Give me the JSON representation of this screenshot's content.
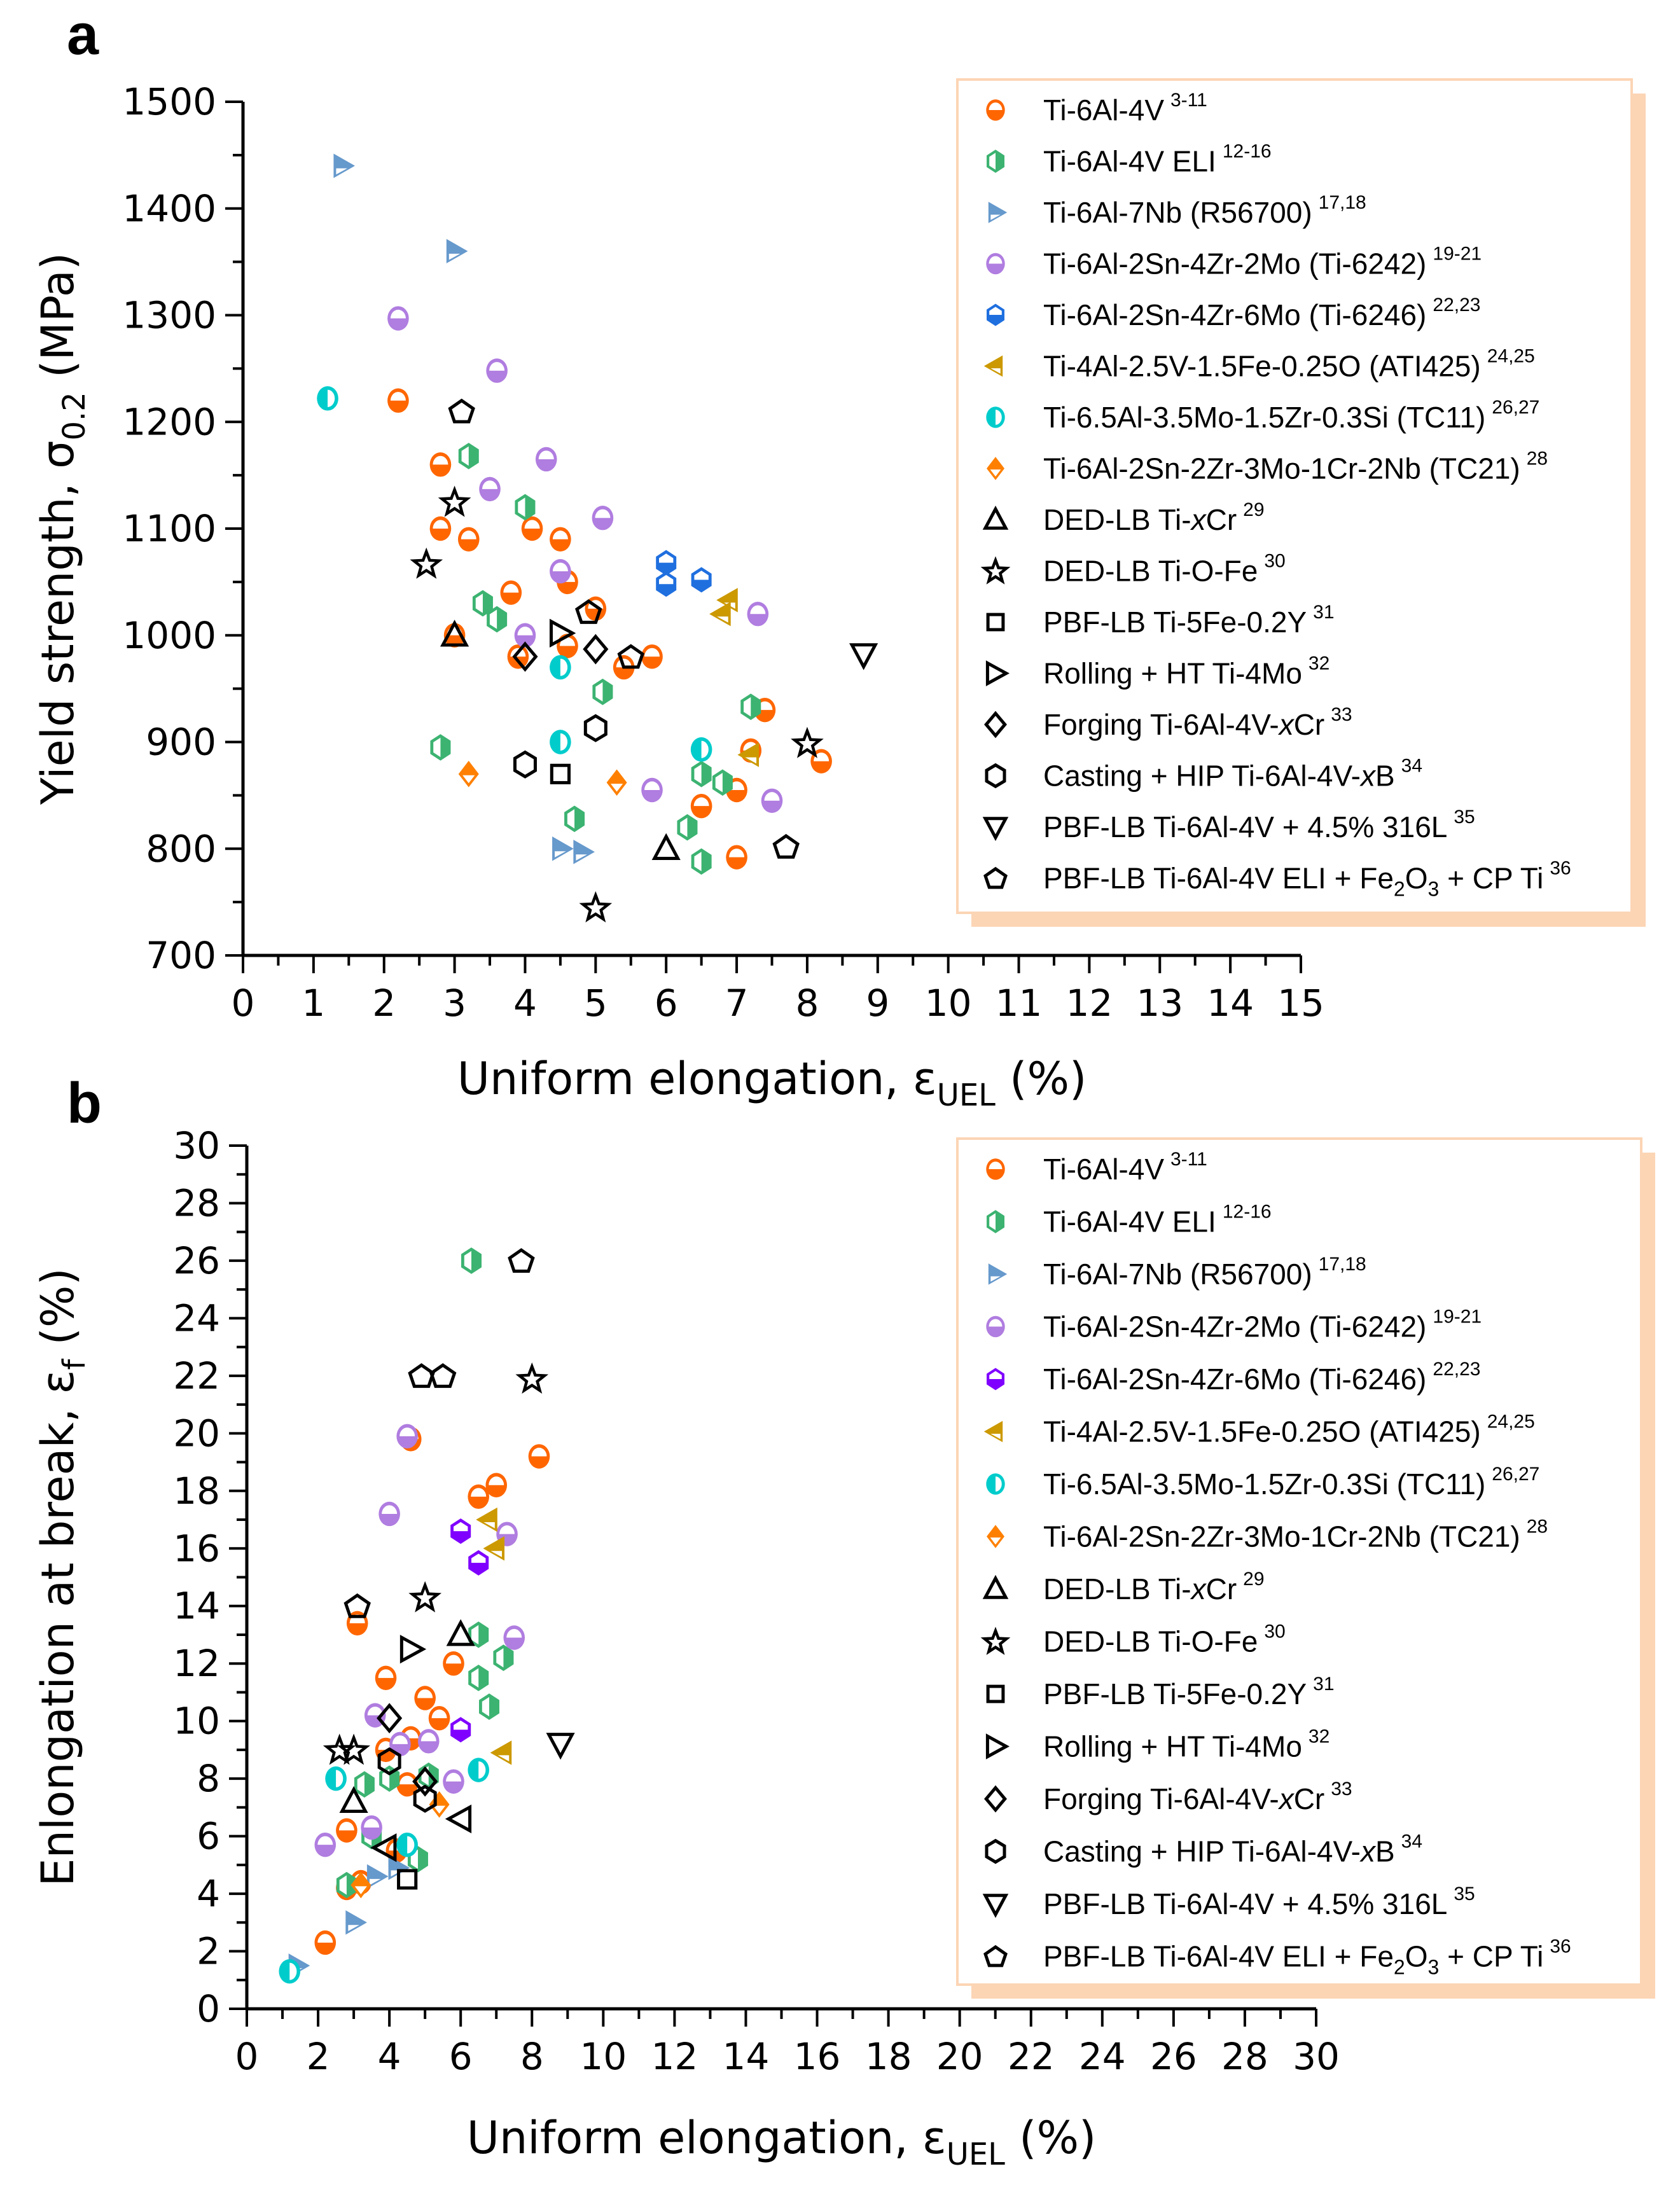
{
  "chart_data": [
    {
      "panel": "a",
      "type": "scatter",
      "title": "",
      "xlabel": "Uniform elongation, εUEL (%)",
      "xlabel_parts": {
        "main": "Uniform elongation, ",
        "symbol": "ε",
        "sub": "UEL",
        "unit": " (%)"
      },
      "ylabel": "Yield strength, σ0.2 (MPa)",
      "ylabel_parts": {
        "main": "Yield strength, ",
        "symbol": "σ",
        "sub": "0.2",
        "unit": " (MPa)"
      },
      "xlim": [
        0,
        15
      ],
      "ylim": [
        700,
        1500
      ],
      "xticks": [
        0,
        1,
        2,
        3,
        4,
        5,
        6,
        7,
        8,
        9,
        10,
        11,
        12,
        13,
        14,
        15
      ],
      "yticks": [
        700,
        800,
        900,
        1000,
        1100,
        1200,
        1300,
        1400,
        1500
      ],
      "grid": false,
      "legend_position": "right",
      "series": [
        {
          "name": "Ti-6Al-4V",
          "ref": "3-11",
          "marker": "circle-half",
          "color": "#ff6600",
          "points": [
            [
              2.2,
              1220
            ],
            [
              2.8,
              1160
            ],
            [
              2.8,
              1100
            ],
            [
              3.2,
              1090
            ],
            [
              3.0,
              1000
            ],
            [
              3.8,
              1040
            ],
            [
              4.1,
              1100
            ],
            [
              4.5,
              1090
            ],
            [
              4.6,
              1050
            ],
            [
              3.9,
              980
            ],
            [
              4.6,
              990
            ],
            [
              5.0,
              1025
            ],
            [
              5.4,
              970
            ],
            [
              5.8,
              980
            ],
            [
              6.5,
              840
            ],
            [
              7.0,
              855
            ],
            [
              7.0,
              792
            ],
            [
              7.2,
              892
            ],
            [
              7.4,
              930
            ],
            [
              8.2,
              882
            ]
          ]
        },
        {
          "name": "Ti-6Al-4V ELI",
          "ref": "12-16",
          "marker": "hexagon-half",
          "color": "#3cb371",
          "points": [
            [
              3.2,
              1168
            ],
            [
              3.4,
              1030
            ],
            [
              3.6,
              1015
            ],
            [
              4.0,
              1120
            ],
            [
              2.8,
              895
            ],
            [
              4.7,
              828
            ],
            [
              5.1,
              947
            ],
            [
              6.3,
              820
            ],
            [
              6.5,
              870
            ],
            [
              6.5,
              788
            ],
            [
              6.8,
              862
            ],
            [
              7.2,
              933
            ]
          ]
        },
        {
          "name": "Ti-6Al-7Nb (R56700)",
          "ref": "17,18",
          "marker": "triangle-right-half",
          "color": "#6699cc",
          "points": [
            [
              1.4,
              1440
            ],
            [
              3.0,
              1360
            ],
            [
              4.5,
              800
            ],
            [
              4.8,
              797
            ]
          ]
        },
        {
          "name": "Ti-6Al-2Sn-4Zr-2Mo (Ti-6242)",
          "ref": "19-21",
          "marker": "circle-half",
          "color": "#b07de0",
          "points": [
            [
              2.2,
              1297
            ],
            [
              3.6,
              1248
            ],
            [
              4.3,
              1165
            ],
            [
              3.5,
              1137
            ],
            [
              4.5,
              1060
            ],
            [
              4.0,
              1000
            ],
            [
              5.1,
              1110
            ],
            [
              7.3,
              1020
            ],
            [
              5.8,
              855
            ],
            [
              7.5,
              845
            ]
          ]
        },
        {
          "name": "Ti-6Al-2Sn-4Zr-6Mo (Ti-6246)",
          "ref": "22,23",
          "marker": "hexagon-top-half",
          "color": "#1f6fdf",
          "points": [
            [
              6.0,
              1068
            ],
            [
              6.0,
              1048
            ],
            [
              6.5,
              1052
            ]
          ]
        },
        {
          "name": "Ti-4Al-2.5V-1.5Fe-0.25O (ATI425)",
          "ref": "24,25",
          "marker": "triangle-left-half",
          "color": "#cc9900",
          "points": [
            [
              6.9,
              1033
            ],
            [
              6.8,
              1020
            ],
            [
              7.2,
              888
            ]
          ]
        },
        {
          "name": "Ti-6.5Al-3.5Mo-1.5Zr-0.3Si (TC11)",
          "ref": "26,27",
          "marker": "circle-vhalf",
          "color": "#00cccc",
          "points": [
            [
              1.2,
              1222
            ],
            [
              4.5,
              970
            ],
            [
              4.5,
              900
            ],
            [
              6.5,
              893
            ]
          ]
        },
        {
          "name": "Ti-6Al-2Sn-2Zr-3Mo-1Cr-2Nb (TC21)",
          "ref": "28",
          "marker": "diamond-half",
          "color": "#ff8000",
          "points": [
            [
              3.2,
              870
            ],
            [
              5.3,
              862
            ]
          ]
        },
        {
          "name": "DED-LB Ti-xCr",
          "ref": "29",
          "italic": "x",
          "marker": "triangle-up",
          "color": "#000000",
          "points": [
            [
              3.0,
              1000
            ],
            [
              6.0,
              800
            ]
          ]
        },
        {
          "name": "DED-LB Ti-O-Fe",
          "ref": "30",
          "marker": "star",
          "color": "#000000",
          "points": [
            [
              3.0,
              1125
            ],
            [
              2.6,
              1067
            ],
            [
              8.0,
              899
            ],
            [
              5.0,
              745
            ]
          ]
        },
        {
          "name": "PBF-LB Ti-5Fe-0.2Y",
          "ref": "31",
          "marker": "square",
          "color": "#000000",
          "points": [
            [
              4.5,
              870
            ]
          ]
        },
        {
          "name": "Rolling + HT Ti-4Mo",
          "ref": "32",
          "marker": "triangle-right",
          "color": "#000000",
          "points": [
            [
              4.5,
              1002
            ]
          ]
        },
        {
          "name": "Forging Ti-6Al-4V-xCr",
          "ref": "33",
          "marker": "diamond",
          "color": "#000000",
          "points": [
            [
              4.0,
              980
            ],
            [
              5.0,
              987
            ]
          ]
        },
        {
          "name": "Casting + HIP Ti-6Al-4V-xB",
          "ref": "34",
          "marker": "hexagon",
          "color": "#000000",
          "points": [
            [
              5.0,
              913
            ],
            [
              4.0,
              879
            ]
          ]
        },
        {
          "name": "PBF-LB Ti-6Al-4V + 4.5% 316L",
          "ref": "35",
          "marker": "triangle-down",
          "color": "#000000",
          "points": [
            [
              8.8,
              982
            ]
          ]
        },
        {
          "name": "PBF-LB Ti-6Al-4V ELI + Fe2O3 + CP Ti",
          "ref": "36",
          "marker": "pentagon",
          "color": "#000000",
          "points": [
            [
              3.1,
              1210
            ],
            [
              4.9,
              1022
            ],
            [
              5.5,
              980
            ],
            [
              7.7,
              802
            ]
          ]
        }
      ]
    },
    {
      "panel": "b",
      "type": "scatter",
      "title": "",
      "xlabel": "Uniform elongation, εUEL (%)",
      "xlabel_parts": {
        "main": "Uniform elongation, ",
        "symbol": "ε",
        "sub": "UEL",
        "unit": " (%)"
      },
      "ylabel": "Enlongation at break, εf (%)",
      "ylabel_parts": {
        "main": "Enlongation at break, ",
        "symbol": "ε",
        "sub": "f",
        "unit": " (%)"
      },
      "xlim": [
        0,
        30
      ],
      "ylim": [
        0,
        30
      ],
      "xticks": [
        0,
        2,
        4,
        6,
        8,
        10,
        12,
        14,
        16,
        18,
        20,
        22,
        24,
        26,
        28,
        30
      ],
      "yticks": [
        0,
        2,
        4,
        6,
        8,
        10,
        12,
        14,
        16,
        18,
        20,
        22,
        24,
        26,
        28,
        30
      ],
      "grid": false,
      "legend_position": "right",
      "series": [
        {
          "name": "Ti-6Al-4V",
          "ref": "3-11",
          "marker": "circle-half",
          "color": "#ff6600",
          "points": [
            [
              2.2,
              2.3
            ],
            [
              2.8,
              4.2
            ],
            [
              3.2,
              4.4
            ],
            [
              2.8,
              6.2
            ],
            [
              3.1,
              13.4
            ],
            [
              3.9,
              11.5
            ],
            [
              3.9,
              9.0
            ],
            [
              4.5,
              7.8
            ],
            [
              4.6,
              9.4
            ],
            [
              4.6,
              19.8
            ],
            [
              5.0,
              10.8
            ],
            [
              5.4,
              10.1
            ],
            [
              5.8,
              12.0
            ],
            [
              6.5,
              17.8
            ],
            [
              7.0,
              18.2
            ],
            [
              8.2,
              19.2
            ],
            [
              4.2,
              5.5
            ]
          ]
        },
        {
          "name": "Ti-6Al-4V ELI",
          "ref": "12-16",
          "marker": "hexagon-half",
          "color": "#3cb371",
          "points": [
            [
              2.8,
              4.3
            ],
            [
              3.3,
              7.8
            ],
            [
              3.5,
              6.0
            ],
            [
              4.0,
              8.0
            ],
            [
              4.8,
              5.2
            ],
            [
              5.1,
              8.1
            ],
            [
              6.3,
              26.0
            ],
            [
              6.5,
              13.0
            ],
            [
              6.5,
              11.5
            ],
            [
              6.8,
              10.5
            ],
            [
              7.2,
              12.2
            ]
          ]
        },
        {
          "name": "Ti-6Al-7Nb (R56700)",
          "ref": "17,18",
          "marker": "triangle-right-half",
          "color": "#6699cc",
          "points": [
            [
              1.4,
              1.5
            ],
            [
              3.0,
              3.0
            ],
            [
              3.6,
              4.6
            ],
            [
              4.2,
              4.9
            ]
          ]
        },
        {
          "name": "Ti-6Al-2Sn-4Zr-2Mo (Ti-6242)",
          "ref": "19-21",
          "marker": "circle-half",
          "color": "#b07de0",
          "points": [
            [
              2.2,
              5.7
            ],
            [
              3.5,
              6.3
            ],
            [
              3.6,
              10.2
            ],
            [
              4.0,
              17.2
            ],
            [
              4.3,
              9.2
            ],
            [
              4.5,
              19.9
            ],
            [
              5.1,
              9.3
            ],
            [
              5.8,
              7.9
            ],
            [
              7.3,
              16.5
            ],
            [
              7.5,
              12.9
            ]
          ]
        },
        {
          "name": "Ti-6Al-2Sn-4Zr-6Mo (Ti-6246)",
          "ref": "22,23",
          "marker": "hexagon-top-half",
          "color": "#7f00ff",
          "points": [
            [
              6.0,
              16.6
            ],
            [
              6.5,
              15.5
            ],
            [
              6.0,
              9.7
            ]
          ]
        },
        {
          "name": "Ti-4Al-2.5V-1.5Fe-0.25O (ATI425)",
          "ref": "24,25",
          "marker": "triangle-left-half",
          "color": "#cc9900",
          "points": [
            [
              6.8,
              17.0
            ],
            [
              7.0,
              16.0
            ],
            [
              7.2,
              8.9
            ]
          ]
        },
        {
          "name": "Ti-6.5Al-3.5Mo-1.5Zr-0.3Si (TC11)",
          "ref": "26,27",
          "marker": "circle-vhalf",
          "color": "#00cccc",
          "points": [
            [
              1.2,
              1.3
            ],
            [
              2.5,
              8.0
            ],
            [
              4.5,
              5.7
            ],
            [
              6.5,
              8.3
            ]
          ]
        },
        {
          "name": "Ti-6Al-2Sn-2Zr-3Mo-1Cr-2Nb (TC21)",
          "ref": "28",
          "marker": "diamond-half",
          "color": "#ff8000",
          "points": [
            [
              3.2,
              4.3
            ],
            [
              5.4,
              7.1
            ]
          ]
        },
        {
          "name": "DED-LB Ti-xCr",
          "ref": "29",
          "italic": "x",
          "marker": "triangle-up",
          "color": "#000000",
          "points": [
            [
              3.0,
              7.2
            ],
            [
              6.0,
              13.0
            ]
          ]
        },
        {
          "name": "DED-LB Ti-O-Fe",
          "ref": "30",
          "marker": "star",
          "color": "#000000",
          "points": [
            [
              2.6,
              9.0
            ],
            [
              3.0,
              9.0
            ],
            [
              5.0,
              14.3
            ],
            [
              8.0,
              21.9
            ]
          ]
        },
        {
          "name": "PBF-LB Ti-5Fe-0.2Y",
          "ref": "31",
          "marker": "square",
          "color": "#000000",
          "points": [
            [
              4.5,
              4.5
            ]
          ]
        },
        {
          "name": "Rolling + HT Ti-4Mo",
          "ref": "32",
          "marker": "triangle-right",
          "color": "#000000",
          "points": [
            [
              4.6,
              12.5
            ]
          ]
        },
        {
          "name": "Forging Ti-6Al-4V-xCr",
          "ref": "33",
          "marker": "diamond",
          "color": "#000000",
          "points": [
            [
              4.0,
              10.1
            ],
            [
              5.0,
              7.9
            ]
          ]
        },
        {
          "name": "Casting + HIP Ti-6Al-4V-xB",
          "ref": "34",
          "marker": "hexagon",
          "color": "#000000",
          "points": [
            [
              4.0,
              8.6
            ],
            [
              5.0,
              7.3
            ]
          ]
        },
        {
          "name": "PBF-LB Ti-6Al-4V + 4.5% 316L",
          "ref": "35",
          "marker": "triangle-down",
          "color": "#000000",
          "points": [
            [
              8.8,
              9.2
            ]
          ]
        },
        {
          "name": "PBF-LB Ti-6Al-4V ELI + Fe2O3 + CP Ti",
          "ref": "36",
          "marker": "pentagon",
          "color": "#000000",
          "points": [
            [
              3.1,
              14.0
            ],
            [
              4.9,
              22.0
            ],
            [
              5.5,
              22.0
            ],
            [
              7.7,
              26.0
            ]
          ]
        },
        {
          "name": "unlabeled black left triangle",
          "ref": "",
          "marker": "triangle-left",
          "color": "#000000",
          "in_legend": false,
          "points": [
            [
              3.9,
              5.6
            ],
            [
              6.0,
              6.6
            ]
          ]
        }
      ]
    }
  ],
  "panels": {
    "a": {
      "letter": "a"
    },
    "b": {
      "letter": "b"
    }
  },
  "legend_style": {
    "border": "#fcd5b5",
    "shadow": "#fcd5b5"
  }
}
